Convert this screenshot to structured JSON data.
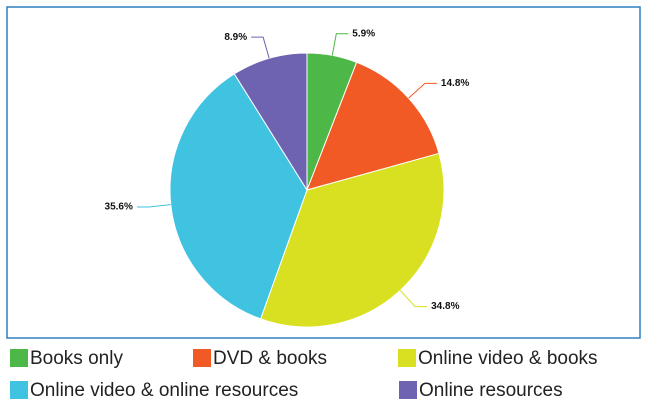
{
  "chart_data": {
    "type": "pie",
    "categories": [
      "Books only",
      "DVD & books",
      "Online video & books",
      "Online video & online resources",
      "Online resources"
    ],
    "values": [
      5.9,
      14.8,
      34.8,
      35.6,
      8.9
    ],
    "value_labels": [
      "5.9%",
      "14.8%",
      "34.8%",
      "35.6%",
      "8.9%"
    ],
    "colors": [
      "#4db848",
      "#f15a24",
      "#d9e021",
      "#3fc3e0",
      "#6e63b0"
    ],
    "legend": "bottom"
  }
}
